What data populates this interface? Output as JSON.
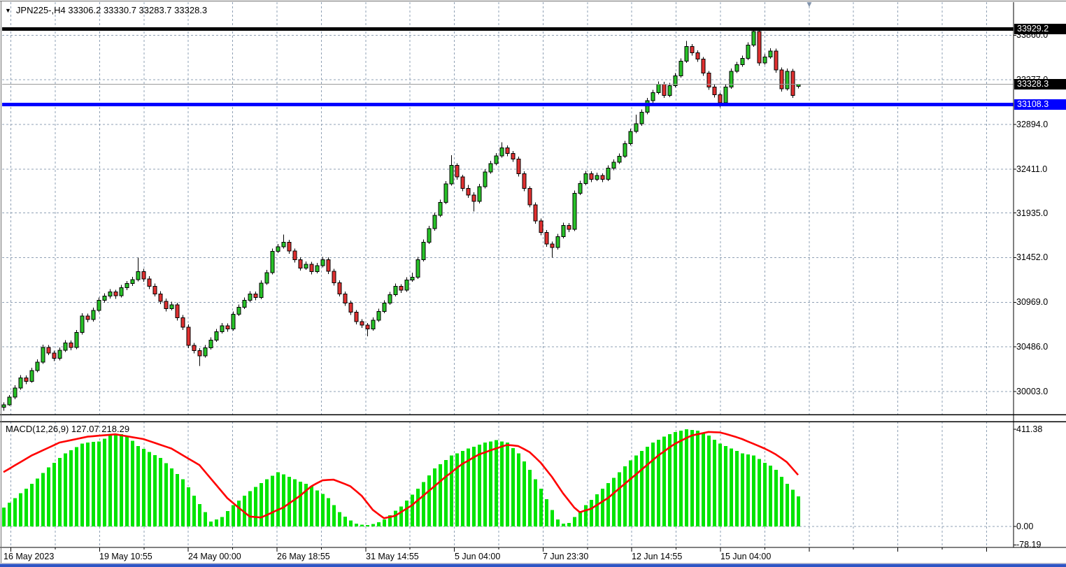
{
  "window": {
    "title": "JPN225-,H4  33306.2 33330.7 33283.7 33328.3"
  },
  "colors": {
    "bull_body": "#28c228",
    "bear_body": "#e03030",
    "wick": "#000000",
    "grid": "#8fa0b4",
    "macd_hist": "#00e400",
    "macd_signal": "#ff0000",
    "hline_black": "#000000",
    "hline_blue": "#0000ff",
    "bid_line": "#9a9a9a",
    "label_box_black": "#000000",
    "label_box_blue": "#0000ff",
    "shift_marker": "#8294ac"
  },
  "chart_data": {
    "type": "candlestick",
    "symbol": "JPN225-",
    "period": "H4",
    "ohlc_display": {
      "open": 33306.2,
      "high": 33330.7,
      "low": 33283.7,
      "close": 33328.3
    },
    "price_axis": {
      "ticks": [
        {
          "v": 33860.0,
          "t": "33860.0"
        },
        {
          "v": 33377.0,
          "t": "33377.0"
        },
        {
          "v": 32894.0,
          "t": "32894.0"
        },
        {
          "v": 32411.0,
          "t": "32411.0"
        },
        {
          "v": 31935.0,
          "t": "31935.0"
        },
        {
          "v": 31452.0,
          "t": "31452.0"
        },
        {
          "v": 30969.0,
          "t": "30969.0"
        },
        {
          "v": 30486.0,
          "t": "30486.0"
        },
        {
          "v": 30003.0,
          "t": "30003.0"
        }
      ],
      "line_labels": [
        {
          "v": 33929.2,
          "t": "33929.2",
          "bg": "#000000"
        },
        {
          "v": 33328.3,
          "t": "33328.3",
          "bg": "#000000"
        },
        {
          "v": 33108.3,
          "t": "33108.3",
          "bg": "#0000ff"
        }
      ]
    },
    "time_axis": {
      "labels": [
        "16 May 2023",
        "19 May 10:55",
        "24 May 00:00",
        "26 May 18:55",
        "31 May 14:55",
        "5 Jun 04:00",
        "7 Jun 23:30",
        "12 Jun 14:55",
        "15 Jun 04:00"
      ]
    },
    "horizontal_lines": [
      {
        "v": 33929.2,
        "color": "#000000",
        "width": 5
      },
      {
        "v": 33108.3,
        "color": "#0000ff",
        "width": 5
      },
      {
        "v": 33328.3,
        "color": "#9a9a9a",
        "width": 1
      }
    ],
    "candles": [
      [
        29830,
        29885,
        29795,
        29860
      ],
      [
        29860,
        29965,
        29845,
        29940
      ],
      [
        29940,
        30070,
        29920,
        30040
      ],
      [
        30040,
        30180,
        30020,
        30150
      ],
      [
        30150,
        30175,
        30080,
        30110
      ],
      [
        30110,
        30260,
        30095,
        30230
      ],
      [
        30230,
        30350,
        30210,
        30320
      ],
      [
        30320,
        30510,
        30300,
        30480
      ],
      [
        30480,
        30505,
        30395,
        30420
      ],
      [
        30420,
        30445,
        30330,
        30360
      ],
      [
        30360,
        30480,
        30340,
        30450
      ],
      [
        30450,
        30560,
        30430,
        30530
      ],
      [
        30530,
        30555,
        30450,
        30480
      ],
      [
        30480,
        30670,
        30460,
        30640
      ],
      [
        30640,
        30850,
        30620,
        30820
      ],
      [
        30820,
        30845,
        30750,
        30780
      ],
      [
        30780,
        30910,
        30760,
        30880
      ],
      [
        30880,
        31020,
        30860,
        30990
      ],
      [
        30990,
        31065,
        30965,
        31035
      ],
      [
        31035,
        31110,
        31010,
        31080
      ],
      [
        31080,
        31105,
        31005,
        31040
      ],
      [
        31040,
        31155,
        31020,
        31125
      ],
      [
        31125,
        31200,
        31100,
        31170
      ],
      [
        31170,
        31245,
        31145,
        31215
      ],
      [
        31215,
        31450,
        31195,
        31300
      ],
      [
        31300,
        31330,
        31190,
        31220
      ],
      [
        31220,
        31250,
        31110,
        31140
      ],
      [
        31140,
        31170,
        31030,
        31060
      ],
      [
        31060,
        31090,
        30950,
        30980
      ],
      [
        30980,
        31010,
        30870,
        30900
      ],
      [
        30900,
        30975,
        30880,
        30940
      ],
      [
        30940,
        30965,
        30770,
        30800
      ],
      [
        30800,
        30830,
        30670,
        30700
      ],
      [
        30700,
        30730,
        30470,
        30500
      ],
      [
        30500,
        30530,
        30415,
        30445
      ],
      [
        30445,
        30470,
        30280,
        30390
      ],
      [
        30390,
        30505,
        30370,
        30475
      ],
      [
        30475,
        30590,
        30455,
        30560
      ],
      [
        30560,
        30680,
        30540,
        30650
      ],
      [
        30650,
        30745,
        30630,
        30715
      ],
      [
        30715,
        30740,
        30650,
        30680
      ],
      [
        30680,
        30870,
        30660,
        30840
      ],
      [
        30840,
        30945,
        30820,
        30915
      ],
      [
        30915,
        31020,
        30895,
        30990
      ],
      [
        30990,
        31090,
        30970,
        31060
      ],
      [
        31060,
        31085,
        30990,
        31020
      ],
      [
        31020,
        31205,
        31000,
        31175
      ],
      [
        31175,
        31320,
        31155,
        31290
      ],
      [
        31290,
        31550,
        31270,
        31520
      ],
      [
        31520,
        31600,
        31500,
        31570
      ],
      [
        31570,
        31700,
        31550,
        31620
      ],
      [
        31620,
        31645,
        31495,
        31525
      ],
      [
        31525,
        31550,
        31400,
        31430
      ],
      [
        31430,
        31455,
        31310,
        31340
      ],
      [
        31340,
        31410,
        31320,
        31380
      ],
      [
        31380,
        31405,
        31270,
        31300
      ],
      [
        31300,
        31395,
        31280,
        31365
      ],
      [
        31365,
        31460,
        31345,
        31430
      ],
      [
        31430,
        31455,
        31275,
        31305
      ],
      [
        31305,
        31330,
        31150,
        31180
      ],
      [
        31180,
        31205,
        31030,
        31060
      ],
      [
        31060,
        31085,
        30930,
        30960
      ],
      [
        30960,
        30985,
        30830,
        30860
      ],
      [
        30860,
        30885,
        30730,
        30760
      ],
      [
        30760,
        30785,
        30690,
        30720
      ],
      [
        30720,
        30745,
        30600,
        30680
      ],
      [
        30680,
        30805,
        30660,
        30775
      ],
      [
        30775,
        30900,
        30755,
        30870
      ],
      [
        30870,
        30990,
        30850,
        30960
      ],
      [
        30960,
        31080,
        30940,
        31050
      ],
      [
        31050,
        31170,
        31030,
        31140
      ],
      [
        31140,
        31165,
        31070,
        31100
      ],
      [
        31100,
        31240,
        31080,
        31210
      ],
      [
        31210,
        31290,
        31190,
        31240
      ],
      [
        31240,
        31460,
        31220,
        31430
      ],
      [
        31430,
        31650,
        31410,
        31620
      ],
      [
        31620,
        31795,
        31600,
        31765
      ],
      [
        31765,
        31940,
        31745,
        31910
      ],
      [
        31910,
        32080,
        31890,
        32050
      ],
      [
        32050,
        32280,
        32030,
        32250
      ],
      [
        32250,
        32560,
        32230,
        32450
      ],
      [
        32450,
        32475,
        32295,
        32325
      ],
      [
        32325,
        32350,
        32170,
        32200
      ],
      [
        32200,
        32240,
        32100,
        32130
      ],
      [
        32130,
        32160,
        31950,
        32060
      ],
      [
        32060,
        32250,
        32040,
        32220
      ],
      [
        32220,
        32410,
        32200,
        32380
      ],
      [
        32380,
        32500,
        32360,
        32470
      ],
      [
        32470,
        32585,
        32450,
        32555
      ],
      [
        32555,
        32700,
        32535,
        32640
      ],
      [
        32640,
        32665,
        32550,
        32580
      ],
      [
        32580,
        32605,
        32490,
        32520
      ],
      [
        32520,
        32545,
        32330,
        32360
      ],
      [
        32360,
        32385,
        32170,
        32200
      ],
      [
        32200,
        32225,
        31995,
        32025
      ],
      [
        32025,
        32050,
        31820,
        31850
      ],
      [
        31850,
        31875,
        31695,
        31725
      ],
      [
        31725,
        31750,
        31570,
        31600
      ],
      [
        31600,
        31625,
        31450,
        31560
      ],
      [
        31560,
        31710,
        31540,
        31680
      ],
      [
        31680,
        31830,
        31660,
        31800
      ],
      [
        31800,
        31825,
        31730,
        31760
      ],
      [
        31760,
        32180,
        31740,
        32150
      ],
      [
        32150,
        32285,
        32130,
        32255
      ],
      [
        32255,
        32390,
        32235,
        32360
      ],
      [
        32360,
        32385,
        32270,
        32300
      ],
      [
        32300,
        32370,
        32280,
        32340
      ],
      [
        32340,
        32365,
        32270,
        32300
      ],
      [
        32300,
        32450,
        32280,
        32420
      ],
      [
        32420,
        32515,
        32400,
        32485
      ],
      [
        32485,
        32580,
        32465,
        32550
      ],
      [
        32550,
        32715,
        32530,
        32685
      ],
      [
        32685,
        32850,
        32665,
        32820
      ],
      [
        32820,
        33000,
        32800,
        32900
      ],
      [
        32900,
        33055,
        32880,
        33025
      ],
      [
        33025,
        33180,
        33005,
        33150
      ],
      [
        33150,
        33270,
        33130,
        33240
      ],
      [
        33240,
        33360,
        33220,
        33330
      ],
      [
        33330,
        33355,
        33180,
        33210
      ],
      [
        33210,
        33345,
        33190,
        33315
      ],
      [
        33315,
        33450,
        33295,
        33420
      ],
      [
        33420,
        33610,
        33400,
        33580
      ],
      [
        33580,
        33800,
        33560,
        33740
      ],
      [
        33740,
        33765,
        33640,
        33670
      ],
      [
        33670,
        33695,
        33570,
        33600
      ],
      [
        33600,
        33625,
        33420,
        33450
      ],
      [
        33450,
        33475,
        33270,
        33300
      ],
      [
        33300,
        33325,
        33185,
        33215
      ],
      [
        33215,
        33240,
        33080,
        33130
      ],
      [
        33130,
        33330,
        33110,
        33300
      ],
      [
        33300,
        33500,
        33280,
        33470
      ],
      [
        33470,
        33570,
        33450,
        33540
      ],
      [
        33540,
        33640,
        33520,
        33610
      ],
      [
        33610,
        33785,
        33590,
        33755
      ],
      [
        33755,
        33929,
        33735,
        33900
      ],
      [
        33900,
        33925,
        33530,
        33560
      ],
      [
        33560,
        33655,
        33540,
        33625
      ],
      [
        33625,
        33720,
        33605,
        33690
      ],
      [
        33690,
        33715,
        33455,
        33485
      ],
      [
        33485,
        33510,
        33250,
        33280
      ],
      [
        33280,
        33500,
        33260,
        33470
      ],
      [
        33470,
        33495,
        33180,
        33210
      ],
      [
        33306.2,
        33330.7,
        33283.7,
        33328.3
      ]
    ],
    "macd": {
      "label_full": "MACD(12,26,9) 127.07 218.29",
      "name": "MACD(12,26,9)",
      "main_current": 127.07,
      "signal_current": 218.29,
      "axis": [
        {
          "v": 411.38,
          "t": "411.38"
        },
        {
          "v": 0,
          "t": "0.00"
        },
        {
          "v": -78.19,
          "t": "-78.19"
        }
      ],
      "histogram": [
        80,
        100,
        120,
        140,
        160,
        180,
        203,
        226,
        250,
        270,
        290,
        310,
        323,
        336,
        350,
        355,
        358,
        360,
        372,
        385,
        388,
        390,
        385,
        362,
        340,
        328,
        315,
        302,
        290,
        268,
        245,
        222,
        200,
        165,
        130,
        95,
        60,
        20,
        30,
        40,
        65,
        90,
        110,
        130,
        150,
        167,
        183,
        200,
        215,
        230,
        220,
        210,
        200,
        190,
        180,
        170,
        153,
        137,
        120,
        90,
        60,
        42,
        25,
        12,
        8,
        6,
        10,
        18,
        30,
        48,
        66,
        85,
        110,
        135,
        160,
        188,
        216,
        245,
        263,
        281,
        300,
        310,
        320,
        330,
        338,
        346,
        355,
        360,
        365,
        360,
        355,
        332,
        310,
        275,
        240,
        200,
        160,
        115,
        70,
        30,
        12,
        15,
        40,
        65,
        90,
        113,
        136,
        160,
        183,
        206,
        230,
        255,
        280,
        300,
        320,
        337,
        355,
        367,
        380,
        390,
        400,
        405,
        411,
        408,
        405,
        395,
        385,
        367,
        350,
        340,
        330,
        320,
        310,
        305,
        300,
        285,
        270,
        258,
        240,
        210,
        180,
        155,
        127
      ],
      "signal": [
        230,
        244,
        258,
        272,
        286,
        300,
        311,
        322,
        333,
        344,
        355,
        360,
        365,
        370,
        375,
        380,
        382,
        384,
        386,
        388,
        390,
        386,
        382,
        378,
        374,
        370,
        362,
        354,
        346,
        338,
        330,
        316,
        302,
        288,
        274,
        260,
        232,
        204,
        176,
        148,
        120,
        100,
        80,
        61,
        42,
        40,
        38,
        48,
        59,
        70,
        80,
        97,
        113,
        130,
        150,
        170,
        183,
        195,
        197,
        198,
        189,
        180,
        170,
        150,
        130,
        100,
        70,
        52,
        35,
        40,
        45,
        60,
        75,
        90,
        110,
        130,
        150,
        170,
        190,
        210,
        228,
        247,
        265,
        278,
        292,
        305,
        313,
        322,
        330,
        338,
        345,
        343,
        340,
        328,
        315,
        293,
        270,
        240,
        210,
        175,
        140,
        110,
        80,
        60,
        68,
        75,
        90,
        105,
        120,
        140,
        160,
        180,
        200,
        220,
        240,
        260,
        280,
        300,
        317,
        334,
        350,
        362,
        374,
        385,
        390,
        395,
        400,
        399,
        398,
        392,
        385,
        378,
        370,
        360,
        350,
        340,
        330,
        318,
        305,
        289,
        272,
        245,
        218
      ]
    }
  }
}
